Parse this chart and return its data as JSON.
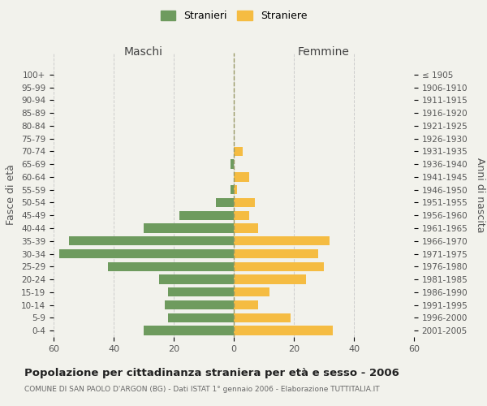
{
  "age_groups": [
    "0-4",
    "5-9",
    "10-14",
    "15-19",
    "20-24",
    "25-29",
    "30-34",
    "35-39",
    "40-44",
    "45-49",
    "50-54",
    "55-59",
    "60-64",
    "65-69",
    "70-74",
    "75-79",
    "80-84",
    "85-89",
    "90-94",
    "95-99",
    "100+"
  ],
  "birth_years": [
    "2001-2005",
    "1996-2000",
    "1991-1995",
    "1986-1990",
    "1981-1985",
    "1976-1980",
    "1971-1975",
    "1966-1970",
    "1961-1965",
    "1956-1960",
    "1951-1955",
    "1946-1950",
    "1941-1945",
    "1936-1940",
    "1931-1935",
    "1926-1930",
    "1921-1925",
    "1916-1920",
    "1911-1915",
    "1906-1910",
    "≤ 1905"
  ],
  "males": [
    30,
    22,
    23,
    22,
    25,
    42,
    58,
    55,
    30,
    18,
    6,
    1,
    0,
    1,
    0,
    0,
    0,
    0,
    0,
    0,
    0
  ],
  "females": [
    33,
    19,
    8,
    12,
    24,
    30,
    28,
    32,
    8,
    5,
    7,
    1,
    5,
    0,
    3,
    0,
    0,
    0,
    0,
    0,
    0
  ],
  "male_color": "#6e9b5e",
  "female_color": "#f5bc42",
  "background_color": "#f2f2ec",
  "grid_color": "#cccccc",
  "title": "Popolazione per cittadinanza straniera per età e sesso - 2006",
  "subtitle": "COMUNE DI SAN PAOLO D'ARGON (BG) - Dati ISTAT 1° gennaio 2006 - Elaborazione TUTTITALIA.IT",
  "xlabel_left": "Maschi",
  "xlabel_right": "Femmine",
  "ylabel_left": "Fasce di età",
  "ylabel_right": "Anni di nascita",
  "legend_male": "Stranieri",
  "legend_female": "Straniere",
  "xlim": 60
}
